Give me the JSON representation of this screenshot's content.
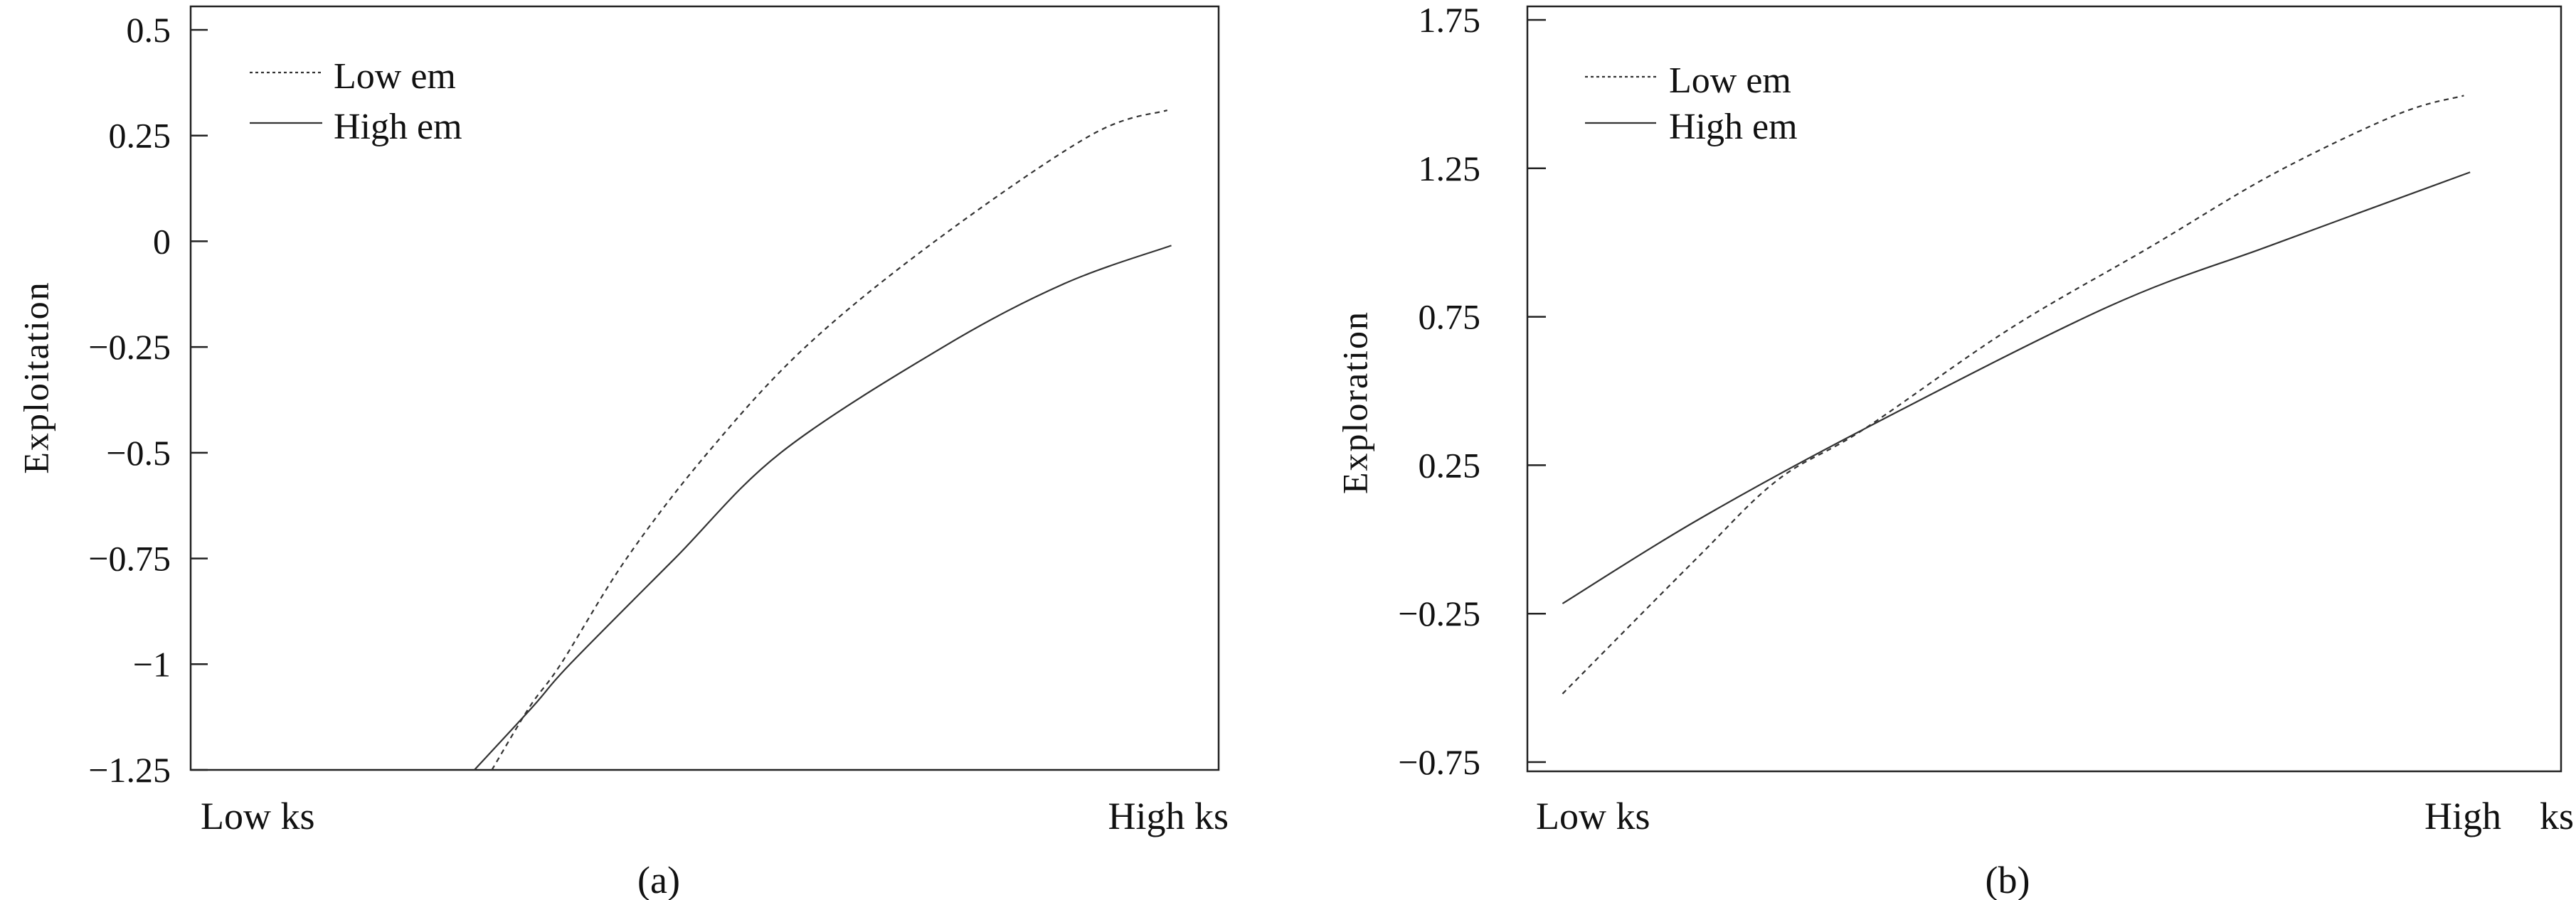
{
  "chart_data": [
    {
      "type": "line",
      "panel_label": "(a)",
      "ylabel": "Exploitation",
      "xlabel": "",
      "x_tick_labels": {
        "low": "Low ks",
        "high": "High ks"
      },
      "xlim": [
        0,
        1
      ],
      "ylim": [
        -1.25,
        0.5
      ],
      "y_ticks": [
        0.5,
        0.25,
        0,
        -0.25,
        -0.5,
        -0.75,
        -1,
        -1.25
      ],
      "y_tick_labels": [
        "0.5",
        "0.25",
        "0",
        "−0.25",
        "−0.5",
        "−0.75",
        "−1",
        "−1.25"
      ],
      "grid": false,
      "legend_position": "top-left",
      "series": [
        {
          "name": "Low em",
          "style": "dashed",
          "x": [
            0.293,
            0.33,
            0.36,
            0.424,
            0.503,
            0.598,
            0.724,
            0.875,
            0.95
          ],
          "y": [
            -1.25,
            -1.1,
            -1.0,
            -0.75,
            -0.5,
            -0.25,
            0.0,
            0.25,
            0.31
          ]
        },
        {
          "name": "High em",
          "style": "solid",
          "x": [
            0.276,
            0.333,
            0.369,
            0.471,
            0.574,
            0.732,
            0.85,
            0.954
          ],
          "y": [
            -1.25,
            -1.1,
            -1.0,
            -0.75,
            -0.5,
            -0.25,
            -0.1,
            -0.01
          ]
        }
      ]
    },
    {
      "type": "line",
      "panel_label": "(b)",
      "ylabel": "Exploration",
      "xlabel": "",
      "x_tick_labels": {
        "low": "Low ks",
        "high": "High    ks"
      },
      "xlim": [
        0,
        1
      ],
      "ylim": [
        -0.75,
        1.75
      ],
      "y_ticks": [
        1.75,
        1.25,
        0.75,
        0.25,
        -0.25,
        -0.75
      ],
      "y_tick_labels": [
        "1.75",
        "1.25",
        "0.75",
        "0.25",
        "−0.25",
        "−0.75"
      ],
      "grid": false,
      "legend_position": "top-left",
      "series": [
        {
          "name": "Low em",
          "style": "dashed",
          "x": [
            0.034,
            0.162,
            0.242,
            0.325,
            0.466,
            0.602,
            0.722,
            0.842,
            0.906
          ],
          "y": [
            -0.52,
            -0.07,
            0.2,
            0.37,
            0.708,
            0.984,
            1.232,
            1.432,
            1.495
          ]
        },
        {
          "name": "High em",
          "style": "solid",
          "x": [
            0.034,
            0.162,
            0.322,
            0.562,
            0.722,
            0.912
          ],
          "y": [
            -0.216,
            0.06,
            0.365,
            0.784,
            0.994,
            1.237
          ]
        }
      ]
    }
  ]
}
